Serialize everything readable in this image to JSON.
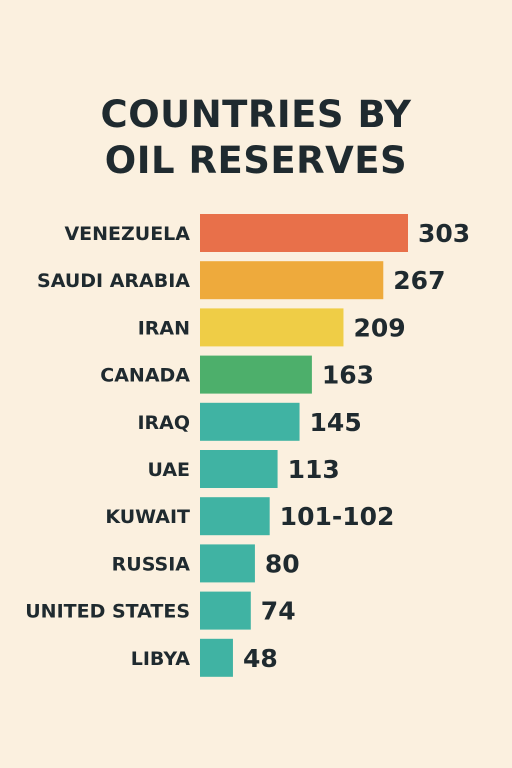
{
  "title_line1": "COUNTRIES BY",
  "title_line2": "OIL RESERVES",
  "chart_data": {
    "type": "bar",
    "orientation": "horizontal",
    "title": "COUNTRIES BY OIL RESERVES",
    "categories": [
      "VENEZUELA",
      "SAUDI ARABIA",
      "IRAN",
      "CANADA",
      "IRAQ",
      "UAE",
      "KUWAIT",
      "RUSSIA",
      "UNITED STATES",
      "LIBYA"
    ],
    "values": [
      303,
      267,
      209,
      163,
      145,
      113,
      101.5,
      80,
      74,
      48
    ],
    "value_labels": [
      "303",
      "267",
      "209",
      "163",
      "145",
      "113",
      "101-102",
      "80",
      "74",
      "48"
    ],
    "colors": [
      "#e8704a",
      "#eeaa3c",
      "#efcd46",
      "#4daf6b",
      "#40b3a3",
      "#40b3a3",
      "#40b3a3",
      "#40b3a3",
      "#40b3a3",
      "#40b3a3"
    ],
    "xlabel": "",
    "ylabel": "",
    "grid": false,
    "legend": "none"
  }
}
